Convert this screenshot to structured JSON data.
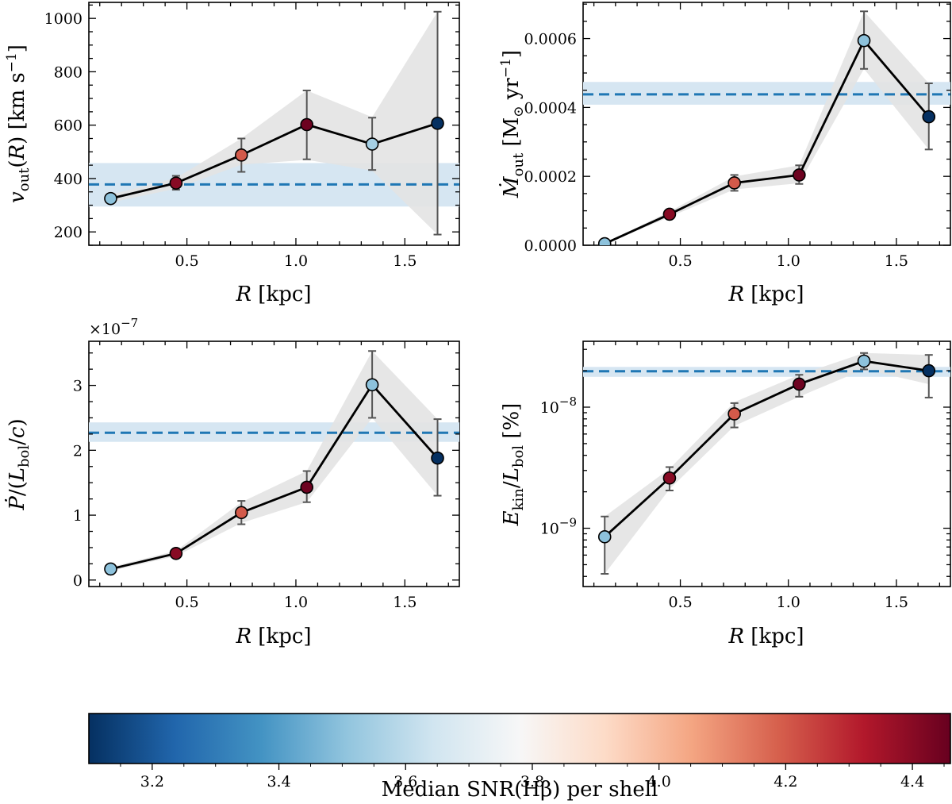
{
  "chart_data": [
    {
      "type": "line",
      "panel": "top-left",
      "x": [
        0.15,
        0.45,
        0.75,
        1.05,
        1.35,
        1.65
      ],
      "y": [
        325,
        383,
        488,
        602,
        529,
        607
      ],
      "yerr": [
        [
          325,
          325
        ],
        [
          358,
          410
        ],
        [
          425,
          550
        ],
        [
          472,
          730
        ],
        [
          432,
          628
        ],
        [
          190,
          1025
        ]
      ],
      "band": [
        [
          310,
          340
        ],
        [
          362,
          402
        ],
        [
          452,
          550
        ],
        [
          470,
          730
        ],
        [
          430,
          630
        ],
        [
          190,
          1025
        ]
      ],
      "snr": [
        3.5,
        4.4,
        4.2,
        4.45,
        3.55,
        3.1
      ],
      "hline": {
        "value": 378,
        "low": 295,
        "high": 458
      },
      "xlim": [
        0.05,
        1.75
      ],
      "ylim": [
        150,
        1060
      ],
      "yscale": "linear",
      "xticks": [
        0.5,
        1.0,
        1.5
      ],
      "xtick_labels": [
        "0.5",
        "1.0",
        "1.5"
      ],
      "yticks": [
        200,
        400,
        600,
        800,
        1000
      ],
      "ytick_labels": [
        "200",
        "400",
        "600",
        "800",
        "1000"
      ],
      "xlabel": "R [kpc]",
      "ylabel": "v_out(R) [km s^-1]",
      "offset_label": ""
    },
    {
      "type": "line",
      "panel": "top-right",
      "x": [
        0.15,
        0.45,
        0.75,
        1.05,
        1.35,
        1.65
      ],
      "y": [
        4.5e-06,
        9e-05,
        0.000181,
        0.000204,
        0.000594,
        0.000373
      ],
      "yerr": [
        [
          4.5e-06,
          4.5e-06
        ],
        [
          9e-05,
          9e-05
        ],
        [
          0.000158,
          0.000204
        ],
        [
          0.000178,
          0.000232
        ],
        [
          0.000512,
          0.000679
        ],
        [
          0.000278,
          0.00047
        ]
      ],
      "band": [
        [
          3e-06,
          6e-06
        ],
        [
          8.2e-05,
          9.8e-05
        ],
        [
          0.000162,
          0.0002
        ],
        [
          0.00018,
          0.000232
        ],
        [
          0.000512,
          0.000679
        ],
        [
          0.000278,
          0.00047
        ]
      ],
      "snr": [
        3.5,
        4.4,
        4.2,
        4.45,
        3.5,
        3.1
      ],
      "hline": {
        "value": 0.000438,
        "low": 0.000408,
        "high": 0.000474
      },
      "xlim": [
        0.05,
        1.75
      ],
      "ylim": [
        0.0,
        0.000705
      ],
      "yscale": "linear",
      "xticks": [
        0.5,
        1.0,
        1.5
      ],
      "xtick_labels": [
        "0.5",
        "1.0",
        "1.5"
      ],
      "yticks": [
        0.0,
        0.0002,
        0.0004,
        0.0006
      ],
      "ytick_labels": [
        "0.0000",
        "0.0002",
        "0.0004",
        "0.0006"
      ],
      "xlabel": "R [kpc]",
      "ylabel": "Ṁ_out [M_⊙ yr^-1]",
      "offset_label": ""
    },
    {
      "type": "line",
      "panel": "bottom-left",
      "x": [
        0.15,
        0.45,
        0.75,
        1.05,
        1.35,
        1.65
      ],
      "y": [
        0.17,
        0.41,
        1.04,
        1.43,
        3.01,
        1.88
      ],
      "yerr": [
        [
          0.17,
          0.17
        ],
        [
          0.41,
          0.41
        ],
        [
          0.86,
          1.22
        ],
        [
          1.2,
          1.68
        ],
        [
          2.5,
          3.53
        ],
        [
          1.3,
          2.48
        ]
      ],
      "band": [
        [
          0.14,
          0.2
        ],
        [
          0.37,
          0.45
        ],
        [
          0.88,
          1.2
        ],
        [
          1.2,
          1.68
        ],
        [
          2.5,
          3.53
        ],
        [
          1.3,
          2.48
        ]
      ],
      "snr": [
        3.5,
        4.4,
        4.2,
        4.45,
        3.5,
        3.1
      ],
      "hline": {
        "value": 2.27,
        "low": 2.13,
        "high": 2.43
      },
      "xlim": [
        0.05,
        1.75
      ],
      "ylim": [
        -0.1,
        3.68
      ],
      "yscale": "linear",
      "xticks": [
        0.5,
        1.0,
        1.5
      ],
      "xtick_labels": [
        "0.5",
        "1.0",
        "1.5"
      ],
      "yticks": [
        0,
        1,
        2,
        3
      ],
      "ytick_labels": [
        "0",
        "1",
        "2",
        "3"
      ],
      "xlabel": "R [kpc]",
      "ylabel": "Ṗ/(L_bol/c)",
      "offset_label": "×10^-7"
    },
    {
      "type": "line",
      "panel": "bottom-right",
      "x": [
        0.15,
        0.45,
        0.75,
        1.05,
        1.35,
        1.65
      ],
      "y": [
        8.5e-10,
        2.6e-09,
        8.8e-09,
        1.55e-08,
        2.4e-08,
        2e-08
      ],
      "yerr": [
        [
          4.2e-10,
          1.25e-09
        ],
        [
          2.05e-09,
          3.2e-09
        ],
        [
          6.8e-09,
          1.08e-08
        ],
        [
          1.22e-08,
          1.85e-08
        ],
        [
          2.05e-08,
          2.8e-08
        ],
        [
          1.2e-08,
          2.7e-08
        ]
      ],
      "band": [
        [
          4.2e-10,
          1.25e-09
        ],
        [
          2.1e-09,
          3.1e-09
        ],
        [
          7e-09,
          1.1e-08
        ],
        [
          1.22e-08,
          1.85e-08
        ],
        [
          2.05e-08,
          2.8e-08
        ],
        [
          1.55e-08,
          2.7e-08
        ]
      ],
      "snr": [
        3.5,
        4.4,
        4.2,
        4.45,
        3.5,
        3.1
      ],
      "hline": {
        "value": 1.98e-08,
        "low": 1.78e-08,
        "high": 2.15e-08
      },
      "xlim": [
        0.05,
        1.75
      ],
      "ylim": [
        3.3e-10,
        3.5e-08
      ],
      "yscale": "log",
      "xticks": [
        0.5,
        1.0,
        1.5
      ],
      "xtick_labels": [
        "0.5",
        "1.0",
        "1.5"
      ],
      "yticks": [
        1e-09,
        1e-08
      ],
      "ytick_labels": [
        "10^-9",
        "10^-8"
      ],
      "xlabel": "R [kpc]",
      "ylabel": "E_kin/L_bol [%]",
      "offset_label": ""
    }
  ],
  "colorbar": {
    "label": "Median SNR(Hβ) per shell",
    "range": [
      3.1,
      4.46
    ],
    "ticks": [
      3.2,
      3.4,
      3.6,
      3.8,
      4.0,
      4.2,
      4.4
    ],
    "tick_labels": [
      "3.2",
      "3.4",
      "3.6",
      "3.8",
      "4.0",
      "4.2",
      "4.4"
    ],
    "colormap": [
      "#053061",
      "#2166ac",
      "#4393c3",
      "#92c5de",
      "#d1e5f0",
      "#f7f7f7",
      "#fddbc7",
      "#f4a582",
      "#d6604d",
      "#b2182b",
      "#67001f"
    ]
  },
  "colors": {
    "line": "#000000",
    "hline": "#1f77b4",
    "hband": "#d6e6f2",
    "errband": "#e3e3e3",
    "errorbar": "#555555"
  }
}
